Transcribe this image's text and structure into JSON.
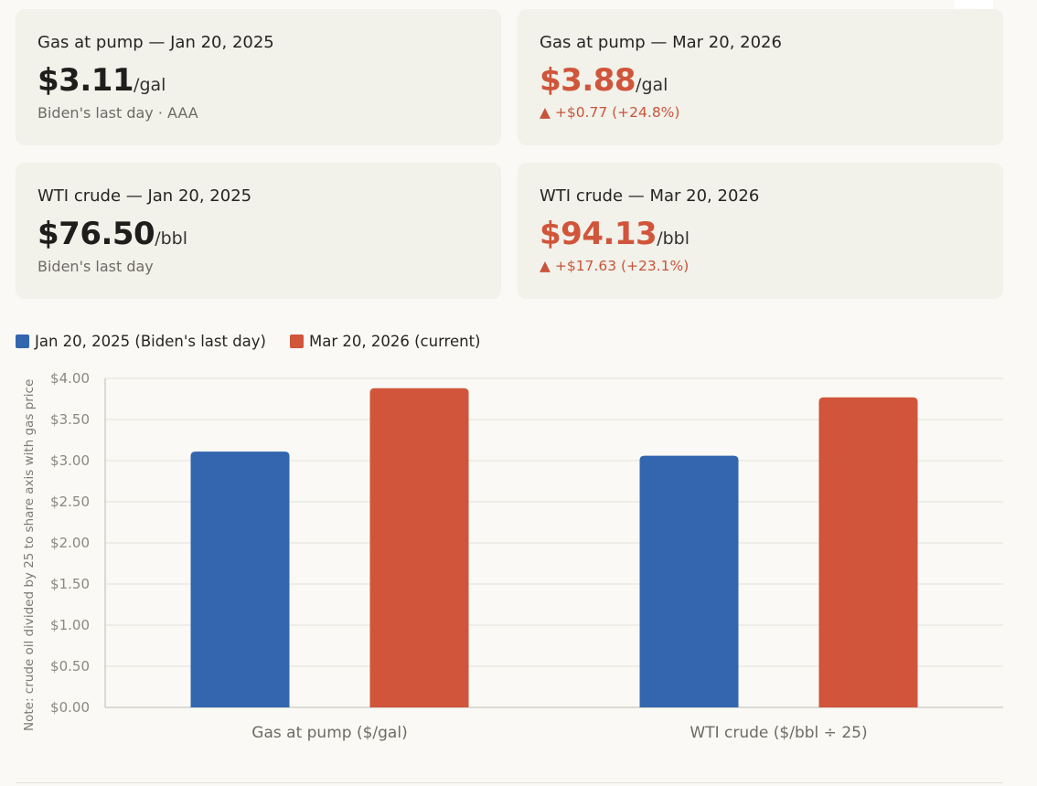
{
  "cards": [
    {
      "label": "Gas at pump — Jan 20, 2025",
      "value": "$3.11",
      "unit": "/gal",
      "sub": "Biden's last day · AAA"
    },
    {
      "label": "Gas at pump — Mar 20, 2026",
      "value": "$3.88",
      "unit": "/gal",
      "delta": "▲ +$0.77 (+24.8%)"
    },
    {
      "label": "WTI crude — Jan 20, 2025",
      "value": "$76.50",
      "unit": "/bbl",
      "sub": "Biden's last day"
    },
    {
      "label": "WTI crude — Mar 20, 2026",
      "value": "$94.13",
      "unit": "/bbl",
      "delta": "▲ +$17.63 (+23.1%)"
    }
  ],
  "menu": {
    "label": "•••"
  },
  "colors": {
    "blue": "#3366ae",
    "red": "#d0553a",
    "grid": "#e3e2dc",
    "axis": "#bdbbb4"
  },
  "chart_data": {
    "type": "bar",
    "categories": [
      "Gas at pump ($/gal)",
      "WTI crude ($/bbl ÷ 25)"
    ],
    "series": [
      {
        "name": "Jan 20, 2025 (Biden's last day)",
        "color": "#3366ae",
        "values": [
          3.11,
          3.06
        ]
      },
      {
        "name": "Mar 20, 2026 (current)",
        "color": "#d0553a",
        "values": [
          3.88,
          3.77
        ]
      }
    ],
    "ylim": [
      0,
      4
    ],
    "yticks": [
      0,
      0.5,
      1,
      1.5,
      2,
      2.5,
      3,
      3.5,
      4
    ],
    "ytick_labels": [
      "$0.00",
      "$0.50",
      "$1.00",
      "$1.50",
      "$2.00",
      "$2.50",
      "$3.00",
      "$3.50",
      "$4.00"
    ],
    "ylabel": "Note: crude oil divided by 25 to share axis with gas price",
    "legend": "top-left",
    "grid": true
  }
}
